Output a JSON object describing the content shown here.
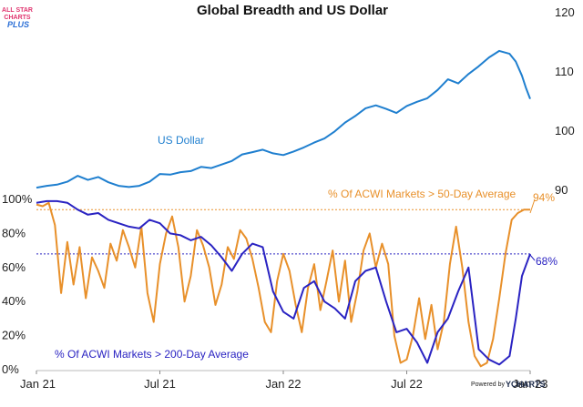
{
  "logo": {
    "line1": "ALL STAR",
    "line2": "CHARTS",
    "line3": "PLUS"
  },
  "footer": {
    "powered_by": "Powered by",
    "brand": "YCHARTS"
  },
  "colors": {
    "usd": "#1f7fcf",
    "ma50": "#e8902a",
    "ma200": "#2a23c2",
    "logo_pink": "#e0336e",
    "logo_blue": "#2b6fd6"
  },
  "chart_data": {
    "type": "line",
    "title": "Global Breadth and US Dollar",
    "x_ticks": [
      "Jan 21",
      "Jul 21",
      "Jan 22",
      "Jul 22",
      "Jan 23"
    ],
    "x_range": [
      0,
      24
    ],
    "left_axis": {
      "ticks": [
        "0%",
        "20%",
        "40%",
        "60%",
        "80%",
        "100%"
      ],
      "range": [
        0,
        100
      ]
    },
    "right_axis": {
      "ticks": [
        "90",
        "100",
        "110",
        "120"
      ],
      "range": [
        90,
        120
      ]
    },
    "series": [
      {
        "name": "US Dollar",
        "axis": "right",
        "label": "US Dollar",
        "x": [
          0,
          0.5,
          1,
          1.5,
          2,
          2.5,
          3,
          3.5,
          4,
          4.5,
          5,
          5.5,
          6,
          6.5,
          7,
          7.5,
          8,
          8.5,
          9,
          9.5,
          10,
          10.5,
          11,
          11.5,
          12,
          12.5,
          13,
          13.5,
          14,
          14.5,
          15,
          15.5,
          16,
          16.5,
          17,
          17.5,
          18,
          18.5,
          19,
          19.5,
          20,
          20.5,
          21,
          21.5,
          22,
          22.5,
          23,
          23.3,
          23.6,
          23.8,
          24
        ],
        "values": [
          90.3,
          90.6,
          90.8,
          91.3,
          92.3,
          91.6,
          92.1,
          91.2,
          90.6,
          90.4,
          90.6,
          91.3,
          92.6,
          92.5,
          92.9,
          93.1,
          93.8,
          93.6,
          94.2,
          94.8,
          95.9,
          96.3,
          96.7,
          96.1,
          95.8,
          96.4,
          97.1,
          97.9,
          98.6,
          99.8,
          101.3,
          102.4,
          103.7,
          104.2,
          103.6,
          102.9,
          104.1,
          104.8,
          105.4,
          106.8,
          108.6,
          107.9,
          109.5,
          110.8,
          112.3,
          113.4,
          112.9,
          111.6,
          109.2,
          107.1,
          105.3
        ]
      },
      {
        "name": "% Of ACWI Markets > 50-Day Average",
        "axis": "left",
        "label": "% Of ACWI Markets > 50-Day Average",
        "end_label": "94%",
        "reference_line": 94,
        "x": [
          0,
          0.3,
          0.6,
          0.9,
          1.2,
          1.5,
          1.8,
          2.1,
          2.4,
          2.7,
          3,
          3.3,
          3.6,
          3.9,
          4.2,
          4.5,
          4.8,
          5.1,
          5.4,
          5.7,
          6,
          6.3,
          6.6,
          6.9,
          7.2,
          7.5,
          7.8,
          8.1,
          8.4,
          8.7,
          9,
          9.3,
          9.6,
          9.9,
          10.2,
          10.5,
          10.8,
          11.1,
          11.4,
          11.7,
          12,
          12.3,
          12.6,
          12.9,
          13.2,
          13.5,
          13.8,
          14.1,
          14.4,
          14.7,
          15,
          15.3,
          15.6,
          15.9,
          16.2,
          16.5,
          16.8,
          17.1,
          17.4,
          17.7,
          18,
          18.3,
          18.6,
          18.9,
          19.2,
          19.5,
          19.8,
          20.1,
          20.4,
          20.7,
          21,
          21.3,
          21.6,
          21.9,
          22.2,
          22.5,
          22.8,
          23.1,
          23.4,
          23.7,
          24
        ],
        "values": [
          97,
          96,
          98,
          85,
          45,
          75,
          50,
          72,
          42,
          66,
          58,
          48,
          74,
          64,
          82,
          72,
          60,
          84,
          45,
          28,
          62,
          80,
          90,
          72,
          40,
          55,
          82,
          73,
          60,
          38,
          50,
          72,
          65,
          82,
          77,
          65,
          48,
          28,
          22,
          52,
          68,
          58,
          38,
          22,
          48,
          62,
          35,
          52,
          70,
          40,
          64,
          28,
          46,
          70,
          80,
          60,
          74,
          62,
          20,
          4,
          6,
          20,
          42,
          18,
          38,
          12,
          28,
          62,
          84,
          60,
          28,
          8,
          2,
          4,
          18,
          42,
          68,
          88,
          92,
          94,
          94
        ]
      },
      {
        "name": "% Of ACWI Markets > 200-Day Average",
        "axis": "left",
        "label": "% Of ACWI Markets > 200-Day Average",
        "end_label": "68%",
        "reference_line": 68,
        "x": [
          0,
          0.5,
          1,
          1.5,
          2,
          2.5,
          3,
          3.5,
          4,
          4.5,
          5,
          5.5,
          6,
          6.5,
          7,
          7.5,
          8,
          8.5,
          9,
          9.5,
          10,
          10.5,
          11,
          11.5,
          12,
          12.5,
          13,
          13.5,
          14,
          14.5,
          15,
          15.5,
          16,
          16.5,
          17,
          17.5,
          18,
          18.5,
          19,
          19.5,
          20,
          20.5,
          21,
          21.5,
          22,
          22.5,
          23,
          23.3,
          23.6,
          24
        ],
        "values": [
          98,
          99,
          99,
          98,
          94,
          91,
          92,
          88,
          86,
          84,
          83,
          88,
          86,
          80,
          79,
          76,
          78,
          73,
          66,
          58,
          68,
          74,
          72,
          46,
          34,
          30,
          48,
          52,
          40,
          36,
          30,
          52,
          58,
          60,
          40,
          22,
          24,
          16,
          4,
          22,
          30,
          46,
          60,
          12,
          6,
          3,
          8,
          30,
          55,
          68
        ]
      }
    ]
  }
}
